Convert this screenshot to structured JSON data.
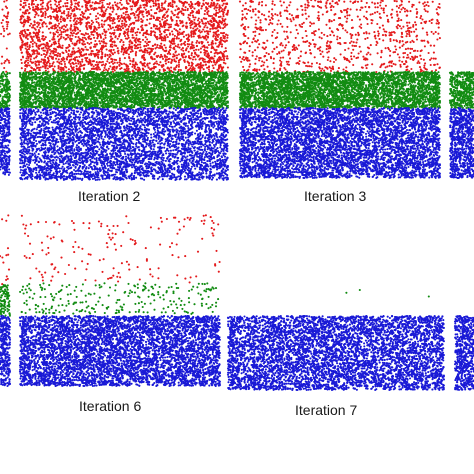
{
  "captions": {
    "iteration_2": "Iteration 2",
    "iteration_3": "Iteration 3",
    "iteration_6": "Iteration 6",
    "iteration_7": "Iteration 7"
  },
  "colors": {
    "top_class": "#e41a1c",
    "middle_class": "#128c12",
    "bottom_class": "#1a1ad6"
  },
  "panels": [
    {
      "id": "panel-left-edge-top",
      "bands": [
        {
          "class": "top",
          "density": 0.05
        },
        {
          "class": "middle",
          "density": 0.4
        },
        {
          "class": "bottom",
          "density": 0.4
        }
      ]
    },
    {
      "id": "panel-iteration-2",
      "caption_key": "iteration_2",
      "bands": [
        {
          "class": "top",
          "density": 0.17
        },
        {
          "class": "middle",
          "density": 0.55
        },
        {
          "class": "bottom",
          "density": 0.3
        }
      ]
    },
    {
      "id": "panel-iteration-3",
      "caption_key": "iteration_3",
      "bands": [
        {
          "class": "top",
          "density": 0.06
        },
        {
          "class": "middle",
          "density": 0.55
        },
        {
          "class": "bottom",
          "density": 0.4
        }
      ]
    },
    {
      "id": "panel-right-edge-top",
      "bands": [
        {
          "class": "middle",
          "density": 0.5
        },
        {
          "class": "bottom",
          "density": 0.45
        }
      ]
    },
    {
      "id": "panel-left-edge-bottom",
      "bands": [
        {
          "class": "top",
          "density": 0.02
        },
        {
          "class": "middle",
          "density": 0.3
        },
        {
          "class": "bottom",
          "density": 0.45
        }
      ]
    },
    {
      "id": "panel-iteration-6",
      "caption_key": "iteration_6",
      "bands": [
        {
          "class": "top",
          "density": 0.012
        },
        {
          "class": "middle",
          "density": 0.04
        },
        {
          "class": "bottom",
          "density": 0.45
        }
      ]
    },
    {
      "id": "panel-iteration-7",
      "caption_key": "iteration_7",
      "bands": [
        {
          "class": "middle",
          "density": 0.0008
        },
        {
          "class": "bottom",
          "density": 0.42
        }
      ]
    },
    {
      "id": "panel-right-edge-bottom",
      "bands": [
        {
          "class": "bottom",
          "density": 0.4
        }
      ]
    }
  ]
}
